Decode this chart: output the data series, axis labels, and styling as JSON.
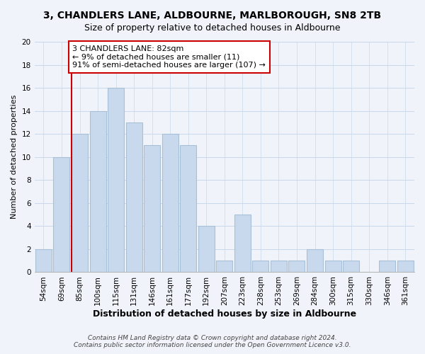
{
  "title": "3, CHANDLERS LANE, ALDBOURNE, MARLBOROUGH, SN8 2TB",
  "subtitle": "Size of property relative to detached houses in Aldbourne",
  "xlabel": "Distribution of detached houses by size in Aldbourne",
  "ylabel": "Number of detached properties",
  "bar_color": "#c8d9ed",
  "bar_edge_color": "#a8bfd8",
  "categories": [
    "54sqm",
    "69sqm",
    "85sqm",
    "100sqm",
    "115sqm",
    "131sqm",
    "146sqm",
    "161sqm",
    "177sqm",
    "192sqm",
    "207sqm",
    "223sqm",
    "238sqm",
    "253sqm",
    "269sqm",
    "284sqm",
    "300sqm",
    "315sqm",
    "330sqm",
    "346sqm",
    "361sqm"
  ],
  "values": [
    2,
    10,
    12,
    14,
    16,
    13,
    11,
    12,
    11,
    4,
    1,
    5,
    1,
    1,
    1,
    2,
    1,
    1,
    0,
    1,
    1
  ],
  "vline_color": "#cc0000",
  "annotation_line1": "3 CHANDLERS LANE: 82sqm",
  "annotation_line2": "← 9% of detached houses are smaller (11)",
  "annotation_line3": "91% of semi-detached houses are larger (107) →",
  "annotation_box_color": "#ffffff",
  "annotation_box_edge_color": "#cc0000",
  "footer_line1": "Contains HM Land Registry data © Crown copyright and database right 2024.",
  "footer_line2": "Contains public sector information licensed under the Open Government Licence v3.0.",
  "ylim": [
    0,
    20
  ],
  "yticks": [
    0,
    2,
    4,
    6,
    8,
    10,
    12,
    14,
    16,
    18,
    20
  ],
  "title_fontsize": 10,
  "subtitle_fontsize": 9,
  "xlabel_fontsize": 9,
  "ylabel_fontsize": 8,
  "tick_fontsize": 7.5,
  "annotation_fontsize": 8,
  "footer_fontsize": 6.5,
  "bg_color": "#f0f4fa"
}
